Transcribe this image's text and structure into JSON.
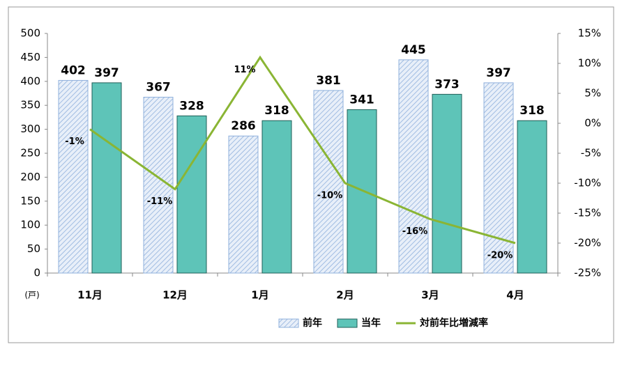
{
  "chart_data": {
    "type": "bar-line",
    "categories": [
      "11月",
      "12月",
      "1月",
      "2月",
      "3月",
      "4月"
    ],
    "y_unit_label": "(戸)",
    "series": [
      {
        "name": "前年",
        "type": "bar",
        "color": "#c9d9ef",
        "values": [
          402,
          367,
          286,
          381,
          445,
          397
        ]
      },
      {
        "name": "当年",
        "type": "bar",
        "color": "#5ec4b8",
        "values": [
          397,
          328,
          318,
          341,
          373,
          318
        ]
      },
      {
        "name": "対前年比増減率",
        "type": "line",
        "axis": "y2",
        "color": "#8ab534",
        "values": [
          -1,
          -11,
          11,
          -10,
          -16,
          -20
        ],
        "value_labels": [
          "-1%",
          "-11%",
          "11%",
          "-10%",
          "-16%",
          "-20%"
        ],
        "label_colors": [
          "#e00000",
          "#e00000",
          "#1a1aff",
          "#e00000",
          "#e00000",
          "#e00000"
        ]
      }
    ],
    "ylim": [
      0,
      500
    ],
    "yticks": [
      0,
      50,
      100,
      150,
      200,
      250,
      300,
      350,
      400,
      450,
      500
    ],
    "y2lim": [
      -25,
      15
    ],
    "y2ticks": [
      {
        "value": -25,
        "label": "-25%"
      },
      {
        "value": -20,
        "label": "-20%"
      },
      {
        "value": -15,
        "label": "-15%"
      },
      {
        "value": -10,
        "label": "-10%"
      },
      {
        "value": -5,
        "label": "-5%"
      },
      {
        "value": 0,
        "label": "0%"
      },
      {
        "value": 5,
        "label": "5%"
      },
      {
        "value": 10,
        "label": "10%"
      },
      {
        "value": 15,
        "label": "15%"
      }
    ],
    "grid": false,
    "legend": "bottom"
  }
}
